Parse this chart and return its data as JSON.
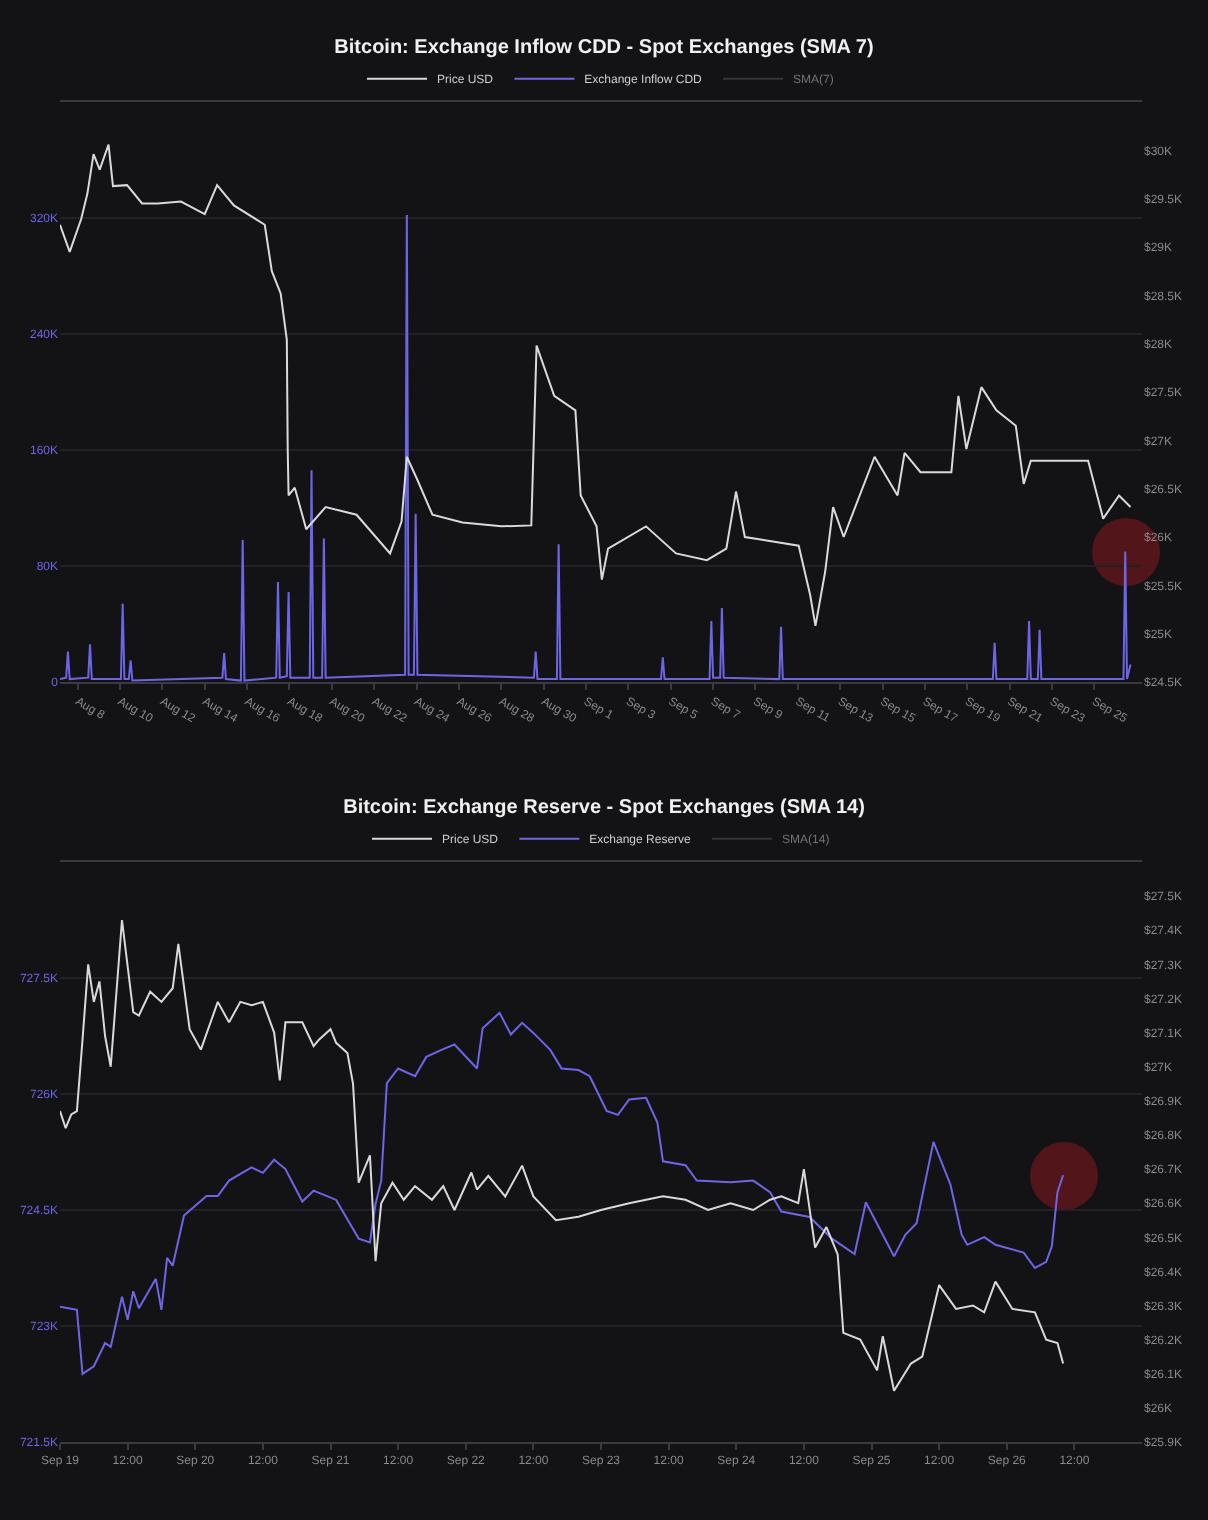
{
  "chart_data": [
    {
      "type": "line",
      "title": "Bitcoin: Exchange Inflow CDD - Spot Exchanges (SMA 7)",
      "legend": "top",
      "grid": "y",
      "xlim": [
        "--08-07T04:00",
        "--09-27T06:00"
      ],
      "xticks": [
        {
          "value": "--08-08",
          "label": "Aug 8"
        },
        {
          "value": "--08-10",
          "label": "Aug 10"
        },
        {
          "value": "--08-12",
          "label": "Aug 12"
        },
        {
          "value": "--08-14",
          "label": "Aug 14"
        },
        {
          "value": "--08-16",
          "label": "Aug 16"
        },
        {
          "value": "--08-18",
          "label": "Aug 18"
        },
        {
          "value": "--08-20",
          "label": "Aug 20"
        },
        {
          "value": "--08-22",
          "label": "Aug 22"
        },
        {
          "value": "--08-24",
          "label": "Aug 24"
        },
        {
          "value": "--08-26",
          "label": "Aug 26"
        },
        {
          "value": "--08-28",
          "label": "Aug 28"
        },
        {
          "value": "--08-30",
          "label": "Aug 30"
        },
        {
          "value": "--09-01",
          "label": "Sep 1"
        },
        {
          "value": "--09-03",
          "label": "Sep 3"
        },
        {
          "value": "--09-05",
          "label": "Sep 5"
        },
        {
          "value": "--09-07",
          "label": "Sep 7"
        },
        {
          "value": "--09-09",
          "label": "Sep 9"
        },
        {
          "value": "--09-11",
          "label": "Sep 11"
        },
        {
          "value": "--09-13",
          "label": "Sep 13"
        },
        {
          "value": "--09-15",
          "label": "Sep 15"
        },
        {
          "value": "--09-17",
          "label": "Sep 17"
        },
        {
          "value": "--09-19",
          "label": "Sep 19"
        },
        {
          "value": "--09-21",
          "label": "Sep 21"
        },
        {
          "value": "--09-23",
          "label": "Sep 23"
        },
        {
          "value": "--09-25",
          "label": "Sep 25"
        }
      ],
      "ylim": [
        0,
        400000
      ],
      "yticks": [
        0,
        {
          "value": 80000,
          "label": "80K"
        },
        {
          "value": 160000,
          "label": "160K"
        },
        {
          "value": 240000,
          "label": "240K"
        },
        {
          "value": 320000,
          "label": "320K"
        }
      ],
      "y2lim": [
        24500,
        30500
      ],
      "y2ticks": [
        {
          "value": 24500,
          "label": "$24.5K"
        },
        {
          "value": 25000,
          "label": "$25K"
        },
        {
          "value": 25500,
          "label": "$25.5K"
        },
        {
          "value": 26000,
          "label": "$26K"
        },
        {
          "value": 26500,
          "label": "$26.5K"
        },
        {
          "value": 27000,
          "label": "$27K"
        },
        {
          "value": 27500,
          "label": "$27.5K"
        },
        {
          "value": 28000,
          "label": "$28K"
        },
        {
          "value": 28500,
          "label": "$28.5K"
        },
        {
          "value": 29000,
          "label": "$29K"
        },
        {
          "value": 29500,
          "label": "$29.5K"
        },
        {
          "value": 30000,
          "label": "$30K"
        }
      ],
      "series": [
        {
          "name": "Price USD",
          "color": "#d9d9d9",
          "axis": "y2",
          "x": [
            "--08-07T04:00",
            "--08-07T15:00",
            "--08-08T04:00",
            "--08-08T11:00",
            "--08-08T18:00",
            "--08-09T01:00",
            "--08-09T11:00",
            "--08-09T16:00",
            "--08-10T08:00",
            "--08-11T01:00",
            "--08-11T19:00",
            "--08-12T21:00",
            "--08-14T00:00",
            "--08-14T14:00",
            "--08-15T09:00",
            "--08-16T20:00",
            "--08-17T04:00",
            "--08-17T14:00",
            "--08-17T21:00",
            "--08-17T22:00",
            "--08-17T23:00",
            "--08-18T06:00",
            "--08-18T19:00",
            "--08-19T17:00",
            "--08-21T04:00",
            "--08-22T18:00",
            "--08-23T07:00",
            "--08-23T13:00",
            "--08-24T01:00",
            "--08-24T18:00",
            "--08-26T04:00",
            "--08-28T00:00",
            "--08-29T10:00",
            "--08-29T16:00",
            "--08-30T12:00",
            "--08-31T12:00",
            "--08-31T18:00",
            "--09-01T12:00",
            "--09-01T18:00",
            "--09-02T01:00",
            "--09-03T20:00",
            "--09-05T06:00",
            "--09-06T17:00",
            "--09-07T15:00",
            "--09-08T02:00",
            "--09-08T12:00",
            "--09-11T01:00",
            "--09-11T14:00",
            "--09-11T20:00",
            "--09-12T07:00",
            "--09-12T16:00",
            "--09-13T04:00",
            "--09-14T15:00",
            "--09-15T17:00",
            "--09-16T01:00",
            "--09-16T19:00",
            "--09-18T06:00",
            "--09-18T14:00",
            "--09-18T23:00",
            "--09-19T16:00",
            "--09-20T09:00",
            "--09-21T07:00",
            "--09-21T16:00",
            "--09-22T00:00",
            "--09-24T17:00",
            "--09-25T10:00",
            "--09-26T04:00",
            "--09-26T17:00"
          ],
          "values": [
            29230,
            28950,
            29290,
            29550,
            29960,
            29800,
            30060,
            29630,
            29640,
            29450,
            29450,
            29470,
            29340,
            29640,
            29430,
            29230,
            28750,
            28520,
            28040,
            26910,
            26430,
            26510,
            26080,
            26310,
            26230,
            25830,
            26160,
            26830,
            26590,
            26230,
            26150,
            26110,
            26120,
            27980,
            27460,
            27310,
            26430,
            26110,
            25560,
            25880,
            26110,
            25830,
            25760,
            25880,
            26470,
            26000,
            25910,
            25400,
            25080,
            25640,
            26310,
            26000,
            26830,
            26430,
            26870,
            26670,
            26670,
            27460,
            26910,
            27550,
            27310,
            27150,
            26550,
            26790,
            26790,
            26190,
            26430,
            26310
          ]
        },
        {
          "name": "Exchange Inflow CDD",
          "color": "#6c66e6",
          "x": [
            "--08-07T04:00",
            "--08-07T11:00",
            "--08-07T13:00",
            "--08-07T15:00",
            "--08-08T12:00",
            "--08-08T14:00",
            "--08-08T16:00",
            "--08-10T01:00",
            "--08-10T03:00",
            "--08-10T05:00",
            "--08-10T10:00",
            "--08-10T12:00",
            "--08-10T14:00",
            "--08-14T20:00",
            "--08-14T22:00",
            "--08-15T00:00",
            "--08-15T17:00",
            "--08-15T19:00",
            "--08-15T21:00",
            "--08-17T09:00",
            "--08-17T11:00",
            "--08-17T13:00",
            "--08-17T21:00",
            "--08-17T23:00",
            "--08-18T01:00",
            "--08-18T23:00",
            "--08-19T01:00",
            "--08-19T03:00",
            "--08-19T13:00",
            "--08-19T15:00",
            "--08-19T17:00",
            "--08-23T11:00",
            "--08-23T13:00",
            "--08-23T15:00",
            "--08-23T21:00",
            "--08-23T23:00",
            "--08-24T01:00",
            "--08-29T13:00",
            "--08-29T15:00",
            "--08-29T17:00",
            "--08-30T15:00",
            "--08-30T17:00",
            "--08-30T19:00",
            "--09-04T13:00",
            "--09-04T15:00",
            "--09-04T17:00",
            "--09-06T20:00",
            "--09-06T22:00",
            "--09-07T00:00",
            "--09-07T08:00",
            "--09-07T10:00",
            "--09-07T12:00",
            "--09-10T03:00",
            "--09-10T05:00",
            "--09-10T07:00",
            "--09-20T05:00",
            "--09-20T07:00",
            "--09-20T09:00",
            "--09-21T20:00",
            "--09-21T22:00",
            "--09-22T00:00",
            "--09-22T08:00",
            "--09-22T10:00",
            "--09-22T12:00",
            "--09-26T09:00",
            "--09-26T11:00",
            "--09-26T13:00",
            "--09-26T17:00"
          ],
          "values": [
            2000,
            3000,
            21000,
            2000,
            3000,
            26000,
            2000,
            2000,
            54000,
            2000,
            2000,
            15000,
            1000,
            3000,
            20000,
            2000,
            1000,
            98000,
            1000,
            3000,
            69000,
            3000,
            4000,
            62000,
            3000,
            3000,
            146000,
            3000,
            3000,
            99000,
            3000,
            5000,
            322000,
            5000,
            5000,
            116000,
            5000,
            3000,
            21000,
            2000,
            2000,
            95000,
            2000,
            2000,
            17000,
            2000,
            2000,
            42000,
            3000,
            3000,
            51000,
            3000,
            2000,
            38000,
            2000,
            2000,
            27000,
            2000,
            2000,
            42000,
            2000,
            2000,
            36000,
            2000,
            2000,
            90000,
            2000,
            12000
          ]
        },
        {
          "name": "SMA(7)",
          "color": "#555555"
        }
      ]
    },
    {
      "type": "line",
      "title": "Bitcoin: Exchange Reserve - Spot Exchanges (SMA 14)",
      "legend": "top",
      "grid": "y",
      "xlim": [
        "--09-19T00:00",
        "--09-27T00:00"
      ],
      "xticks": [
        {
          "value": "--09-19",
          "label": "Sep 19"
        },
        {
          "value": "--09-19T12:00",
          "label": "12:00"
        },
        {
          "value": "--09-20",
          "label": "Sep 20"
        },
        {
          "value": "--09-20T12:00",
          "label": "12:00"
        },
        {
          "value": "--09-21",
          "label": "Sep 21"
        },
        {
          "value": "--09-21T12:00",
          "label": "12:00"
        },
        {
          "value": "--09-22",
          "label": "Sep 22"
        },
        {
          "value": "--09-22T12:00",
          "label": "12:00"
        },
        {
          "value": "--09-23",
          "label": "Sep 23"
        },
        {
          "value": "--09-23T12:00",
          "label": "12:00"
        },
        {
          "value": "--09-24",
          "label": "Sep 24"
        },
        {
          "value": "--09-24T12:00",
          "label": "12:00"
        },
        {
          "value": "--09-25",
          "label": "Sep 25"
        },
        {
          "value": "--09-25T12:00",
          "label": "12:00"
        },
        {
          "value": "--09-26",
          "label": "Sep 26"
        },
        {
          "value": "--09-26T12:00",
          "label": "12:00"
        }
      ],
      "ylim": [
        721500,
        729000
      ],
      "yticks": [
        {
          "value": 721500,
          "label": "721.5K"
        },
        {
          "value": 723000,
          "label": "723K"
        },
        {
          "value": 724500,
          "label": "724.5K"
        },
        {
          "value": 726000,
          "label": "726K"
        },
        {
          "value": 727500,
          "label": "727.5K"
        }
      ],
      "y2lim": [
        25900,
        27600
      ],
      "y2ticks": [
        {
          "value": 25900,
          "label": "$25.9K"
        },
        {
          "value": 26000,
          "label": "$26K"
        },
        {
          "value": 26100,
          "label": "$26.1K"
        },
        {
          "value": 26200,
          "label": "$26.2K"
        },
        {
          "value": 26300,
          "label": "$26.3K"
        },
        {
          "value": 26400,
          "label": "$26.4K"
        },
        {
          "value": 26500,
          "label": "$26.5K"
        },
        {
          "value": 26600,
          "label": "$26.6K"
        },
        {
          "value": 26700,
          "label": "$26.7K"
        },
        {
          "value": 26800,
          "label": "$26.8K"
        },
        {
          "value": 26900,
          "label": "$26.9K"
        },
        {
          "value": 27000,
          "label": "$27K"
        },
        {
          "value": 27100,
          "label": "$27.1K"
        },
        {
          "value": 27200,
          "label": "$27.2K"
        },
        {
          "value": 27300,
          "label": "$27.3K"
        },
        {
          "value": 27400,
          "label": "$27.4K"
        },
        {
          "value": 27500,
          "label": "$27.5K"
        }
      ],
      "series": [
        {
          "name": "Price USD",
          "color": "#d9d9d9",
          "axis": "y2",
          "x": [
            "--09-19T00:00",
            "--09-19T01:00",
            "--09-19T02:00",
            "--09-19T03:00",
            "--09-19T04:00",
            "--09-19T05:00",
            "--09-19T06:00",
            "--09-19T07:00",
            "--09-19T08:00",
            "--09-19T09:00",
            "--09-19T11:00",
            "--09-19T13:00",
            "--09-19T14:00",
            "--09-19T16:00",
            "--09-19T18:00",
            "--09-19T20:00",
            "--09-19T21:00",
            "--09-19T23:00",
            "--09-20T01:00",
            "--09-20T04:00",
            "--09-20T06:00",
            "--09-20T08:00",
            "--09-20T10:00",
            "--09-20T12:00",
            "--09-20T14:00",
            "--09-20T15:00",
            "--09-20T16:00",
            "--09-20T19:00",
            "--09-20T21:00",
            "--09-20T22:00",
            "--09-21T00:00",
            "--09-21T01:00",
            "--09-21T03:00",
            "--09-21T04:00",
            "--09-21T05:00",
            "--09-21T07:00",
            "--09-21T08:00",
            "--09-21T09:00",
            "--09-21T11:00",
            "--09-21T13:00",
            "--09-21T15:00",
            "--09-21T18:00",
            "--09-21T20:00",
            "--09-21T22:00",
            "--09-22T01:00",
            "--09-22T02:00",
            "--09-22T04:00",
            "--09-22T07:00",
            "--09-22T10:00",
            "--09-22T12:00",
            "--09-22T16:00",
            "--09-22T20:00",
            "--09-23T00:00",
            "--09-23T05:00",
            "--09-23T11:00",
            "--09-23T15:00",
            "--09-23T19:00",
            "--09-23T23:00",
            "--09-24T03:00",
            "--09-24T06:00",
            "--09-24T08:00",
            "--09-24T11:00",
            "--09-24T12:00",
            "--09-24T14:00",
            "--09-24T16:00",
            "--09-24T18:00",
            "--09-24T19:00",
            "--09-24T22:00",
            "--09-25T01:00",
            "--09-25T02:00",
            "--09-25T04:00",
            "--09-25T07:00",
            "--09-25T09:00",
            "--09-25T12:00",
            "--09-25T15:00",
            "--09-25T18:00",
            "--09-25T20:00",
            "--09-25T22:00",
            "--09-26T01:00",
            "--09-26T05:00",
            "--09-26T07:00",
            "--09-26T09:00",
            "--09-26T10:00"
          ],
          "values": [
            26870,
            26820,
            26860,
            26870,
            27080,
            27300,
            27190,
            27250,
            27090,
            27000,
            27430,
            27160,
            27150,
            27220,
            27190,
            27230,
            27360,
            27110,
            27050,
            27190,
            27130,
            27190,
            27180,
            27190,
            27100,
            26960,
            27130,
            27130,
            27060,
            27080,
            27110,
            27070,
            27040,
            26950,
            26660,
            26740,
            26430,
            26600,
            26660,
            26610,
            26650,
            26610,
            26650,
            26580,
            26690,
            26640,
            26680,
            26620,
            26710,
            26620,
            26550,
            26560,
            26580,
            26600,
            26620,
            26610,
            26580,
            26600,
            26580,
            26610,
            26620,
            26600,
            26700,
            26470,
            26530,
            26450,
            26220,
            26200,
            26110,
            26210,
            26050,
            26130,
            26150,
            26360,
            26290,
            26300,
            26280,
            26370,
            26290,
            26280,
            26200,
            26190,
            26130
          ]
        },
        {
          "name": "Exchange Reserve",
          "color": "#6c66e6",
          "x": [
            "--09-19T00:00",
            "--09-19T03:00",
            "--09-19T04:00",
            "--09-19T06:00",
            "--09-19T08:00",
            "--09-19T09:00",
            "--09-19T11:00",
            "--09-19T12:00",
            "--09-19T13:00",
            "--09-19T14:00",
            "--09-19T17:00",
            "--09-19T18:00",
            "--09-19T19:00",
            "--09-19T20:00",
            "--09-19T22:00",
            "--09-20T02:00",
            "--09-20T04:00",
            "--09-20T06:00",
            "--09-20T10:00",
            "--09-20T12:00",
            "--09-20T14:00",
            "--09-20T16:00",
            "--09-20T19:00",
            "--09-20T21:00",
            "--09-21T01:00",
            "--09-21T05:00",
            "--09-21T07:00",
            "--09-21T08:00",
            "--09-21T09:00",
            "--09-21T10:00",
            "--09-21T12:00",
            "--09-21T15:00",
            "--09-21T17:00",
            "--09-21T20:00",
            "--09-21T22:00",
            "--09-22T02:00",
            "--09-22T03:00",
            "--09-22T06:00",
            "--09-22T08:00",
            "--09-22T10:00",
            "--09-22T12:00",
            "--09-22T15:00",
            "--09-22T17:00",
            "--09-22T20:00",
            "--09-22T22:00",
            "--09-23T01:00",
            "--09-23T03:00",
            "--09-23T05:00",
            "--09-23T08:00",
            "--09-23T10:00",
            "--09-23T11:00",
            "--09-23T15:00",
            "--09-23T17:00",
            "--09-23T23:00",
            "--09-24T03:00",
            "--09-24T06:00",
            "--09-24T08:00",
            "--09-24T13:00",
            "--09-24T17:00",
            "--09-24T21:00",
            "--09-24T23:00",
            "--09-25T02:00",
            "--09-25T04:00",
            "--09-25T06:00",
            "--09-25T08:00",
            "--09-25T11:00",
            "--09-25T14:00",
            "--09-25T16:00",
            "--09-25T17:00",
            "--09-25T20:00",
            "--09-25T22:00",
            "--09-26T03:00",
            "--09-26T05:00",
            "--09-26T07:00",
            "--09-26T08:00",
            "--09-26T09:00",
            "--09-26T10:00"
          ],
          "values": [
            723250,
            723210,
            722380,
            722480,
            722780,
            722730,
            723380,
            723080,
            723450,
            723230,
            723610,
            723210,
            723880,
            723780,
            724430,
            724680,
            724680,
            724880,
            725050,
            724980,
            725150,
            725030,
            724610,
            724750,
            724630,
            724130,
            724080,
            724580,
            724880,
            726140,
            726330,
            726230,
            726480,
            726580,
            726640,
            726330,
            726850,
            727050,
            726770,
            726920,
            726790,
            726570,
            726330,
            726310,
            726230,
            725780,
            725730,
            725930,
            725950,
            725630,
            725130,
            725080,
            724880,
            724860,
            724880,
            724730,
            724480,
            724410,
            724130,
            723930,
            724600,
            724180,
            723900,
            724180,
            724330,
            725380,
            724830,
            724180,
            724050,
            724150,
            724050,
            723950,
            723750,
            723830,
            724030,
            724730,
            724950
          ]
        },
        {
          "name": "SMA(14)",
          "color": "#555555"
        }
      ]
    }
  ]
}
